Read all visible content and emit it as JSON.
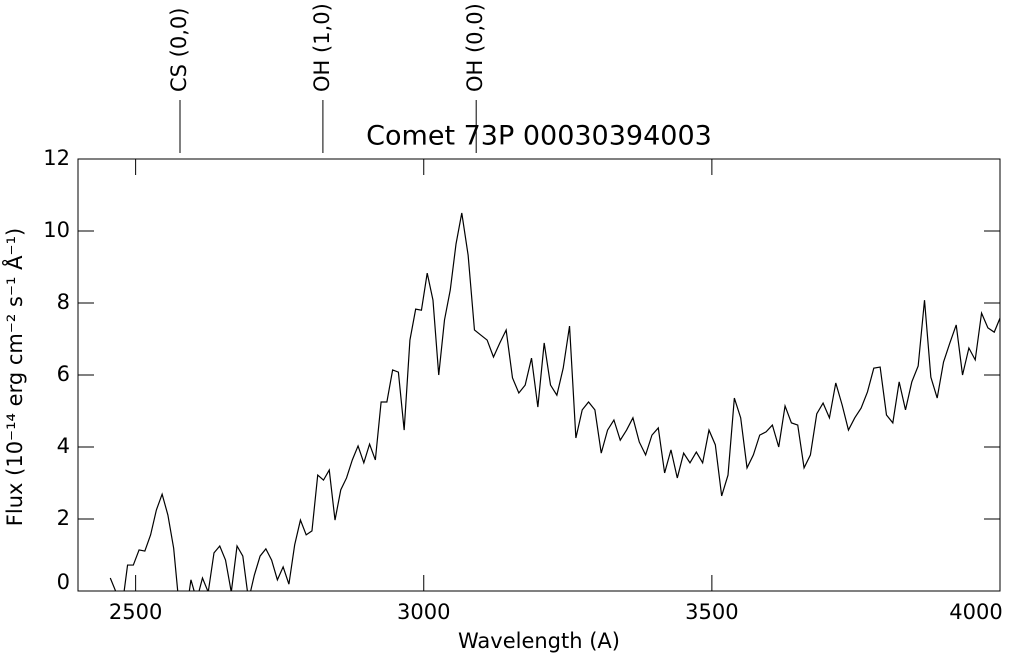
{
  "chart_data": {
    "type": "line",
    "title": "Comet 73P 00030394003",
    "x_label": "Wavelength (A)",
    "y_label": "Flux (10⁻¹⁴ erg cm⁻² s⁻¹ Å⁻¹)",
    "xlim": [
      2400,
      4000
    ],
    "xticks": [
      2500,
      3000,
      3500,
      4000
    ],
    "ylim": [
      0,
      12
    ],
    "yticks": [
      0,
      2,
      4,
      6,
      8,
      10,
      12
    ],
    "annotations": [
      {
        "label": "CS (0,0)",
        "x": 2577
      },
      {
        "label": "OH (1,0)",
        "x": 2825
      },
      {
        "label": "OH (0,0)",
        "x": 3091
      }
    ],
    "series": [
      {
        "color": "#000000",
        "x": [
          2456,
          2466,
          2476,
          2486,
          2496,
          2506,
          2516,
          2526,
          2536,
          2546,
          2556,
          2566,
          2576,
          2586,
          2596,
          2606,
          2616,
          2626,
          2636,
          2646,
          2656,
          2666,
          2676,
          2686,
          2696,
          2706,
          2716,
          2726,
          2736,
          2746,
          2756,
          2766,
          2776,
          2786,
          2796,
          2806,
          2816,
          2826,
          2836,
          2846,
          2856,
          2866,
          2876,
          2886,
          2896,
          2906,
          2916,
          2926,
          2936,
          2946,
          2956,
          2966,
          2976,
          2986,
          2996,
          3006,
          3016,
          3026,
          3036,
          3046,
          3056,
          3066,
          3077,
          3088,
          3099,
          3110,
          3121,
          3132,
          3143,
          3154,
          3165,
          3176,
          3187,
          3198,
          3209,
          3220,
          3231,
          3242,
          3253,
          3264,
          3275,
          3286,
          3297,
          3308,
          3319,
          3330,
          3341,
          3352,
          3363,
          3374,
          3385,
          3396,
          3407,
          3418,
          3429,
          3440,
          3451,
          3462,
          3473,
          3484,
          3495,
          3506,
          3517,
          3528,
          3539,
          3550,
          3561,
          3572,
          3583,
          3594,
          3605,
          3616,
          3627,
          3638,
          3649,
          3660,
          3671,
          3682,
          3693,
          3704,
          3715,
          3726,
          3737,
          3748,
          3759,
          3770,
          3781,
          3792,
          3803,
          3814,
          3825,
          3836,
          3847,
          3858,
          3869,
          3880,
          3891,
          3902,
          3913,
          3924,
          3935,
          3946,
          3957,
          3968,
          3979,
          3990,
          4000
        ],
        "values": [
          0.36,
          -0.03,
          -0.5,
          0.72,
          0.72,
          1.14,
          1.11,
          1.56,
          2.25,
          2.69,
          2.11,
          1.19,
          -0.5,
          -0.8,
          0.31,
          -0.25,
          0.36,
          -0.03,
          1.06,
          1.25,
          0.86,
          -0.03,
          1.25,
          0.97,
          -0.25,
          0.44,
          0.97,
          1.17,
          0.86,
          0.31,
          0.67,
          0.19,
          1.28,
          1.97,
          1.56,
          1.67,
          3.22,
          3.08,
          3.36,
          1.97,
          2.81,
          3.14,
          3.64,
          4.03,
          3.56,
          4.08,
          3.64,
          5.25,
          5.25,
          6.14,
          6.08,
          4.47,
          6.97,
          7.83,
          7.8,
          8.83,
          8.08,
          6.0,
          7.53,
          8.36,
          9.64,
          10.5,
          9.33,
          7.25,
          7.11,
          6.97,
          6.5,
          6.89,
          7.25,
          5.92,
          5.5,
          5.72,
          6.47,
          5.11,
          6.89,
          5.72,
          5.44,
          6.19,
          7.36,
          4.25,
          5.03,
          5.25,
          5.03,
          3.83,
          4.47,
          4.75,
          4.19,
          4.47,
          4.81,
          4.14,
          3.78,
          4.33,
          4.53,
          3.28,
          3.92,
          3.14,
          3.83,
          3.56,
          3.86,
          3.56,
          4.47,
          4.06,
          2.64,
          3.22,
          5.36,
          4.81,
          3.42,
          3.78,
          4.33,
          4.42,
          4.61,
          4.0,
          5.14,
          4.67,
          4.61,
          3.42,
          3.78,
          4.92,
          5.22,
          4.81,
          5.78,
          5.17,
          4.47,
          4.81,
          5.08,
          5.53,
          6.19,
          6.22,
          4.89,
          4.67,
          5.81,
          5.03,
          5.81,
          6.25,
          8.08,
          5.94,
          5.36,
          6.36,
          6.89,
          7.39,
          6.0,
          6.75,
          6.42,
          7.72,
          7.31,
          7.19,
          7.58
        ]
      }
    ]
  }
}
